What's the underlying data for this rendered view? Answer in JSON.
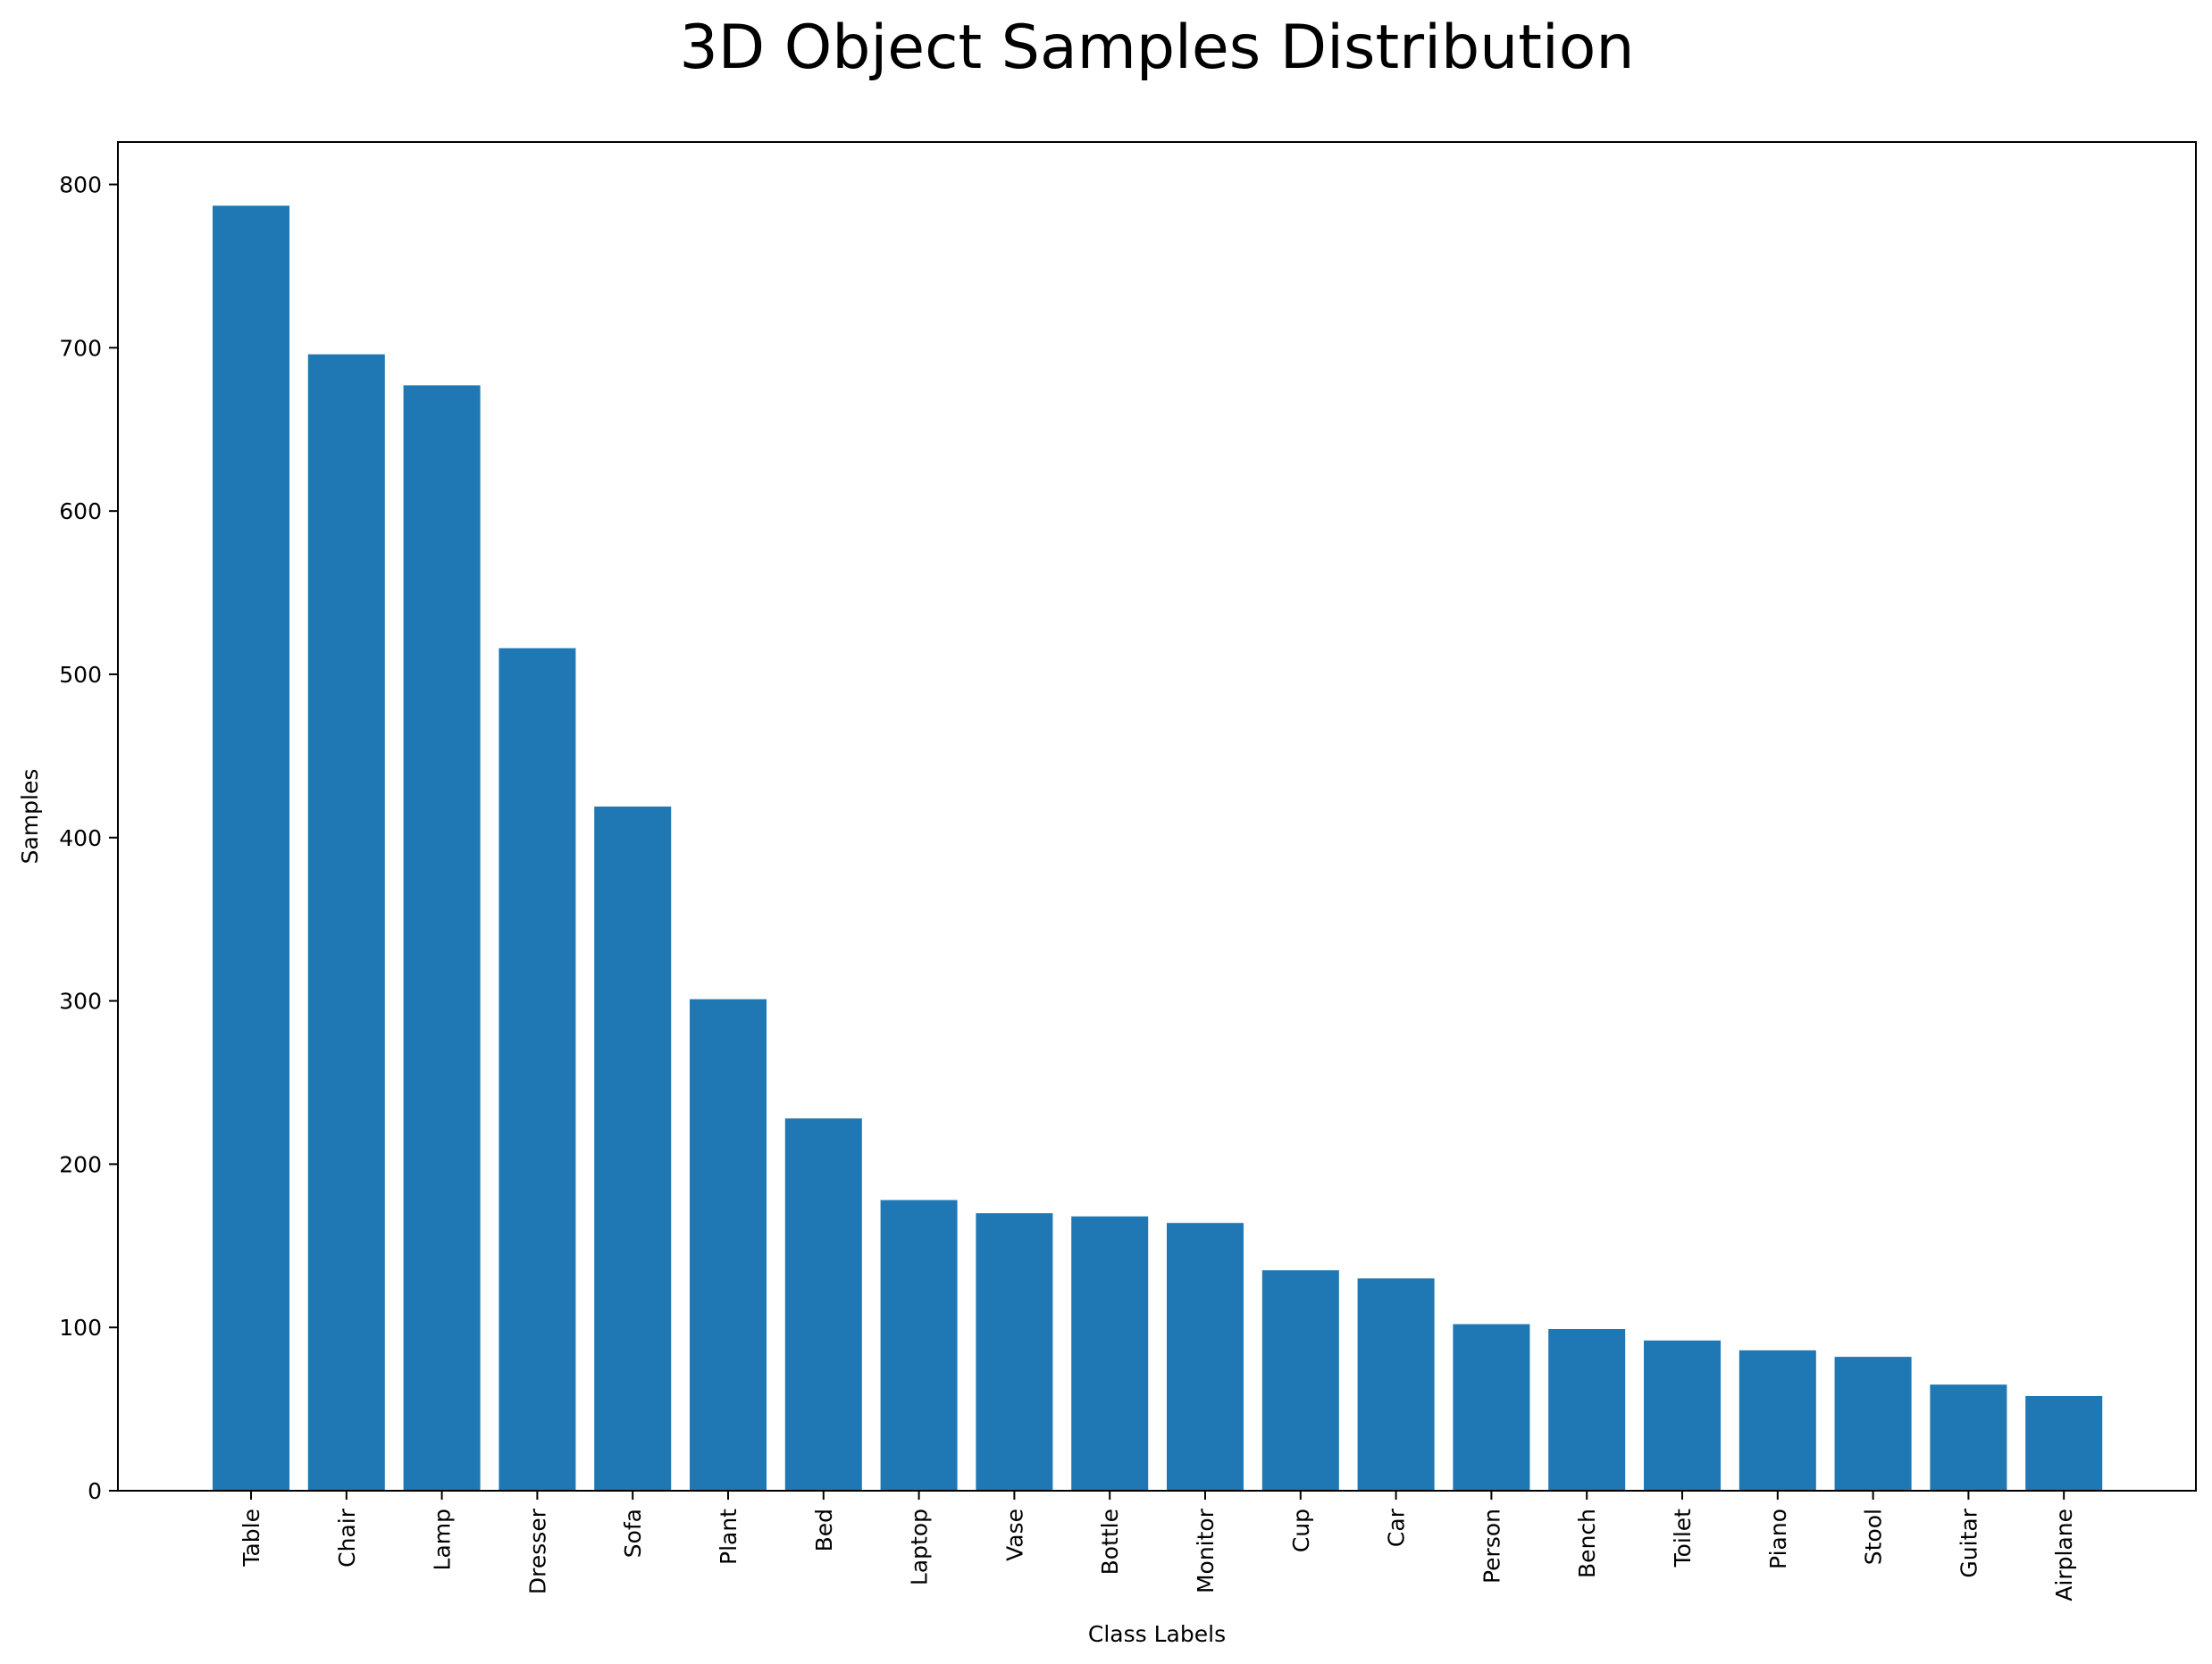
{
  "chart_data": {
    "type": "bar",
    "title": "3D Object Samples Distribution",
    "xlabel": "Class Labels",
    "ylabel": "Samples",
    "categories": [
      "Table",
      "Chair",
      "Lamp",
      "Dresser",
      "Sofa",
      "Plant",
      "Bed",
      "Laptop",
      "Vase",
      "Bottle",
      "Monitor",
      "Cup",
      "Car",
      "Person",
      "Bench",
      "Toilet",
      "Piano",
      "Stool",
      "Guitar",
      "Airplane"
    ],
    "values": [
      787,
      696,
      677,
      516,
      419,
      301,
      228,
      178,
      170,
      168,
      164,
      135,
      130,
      102,
      99,
      92,
      86,
      82,
      65,
      58
    ],
    "ylim": [
      0,
      826
    ],
    "yticks": [
      0,
      100,
      200,
      300,
      400,
      500,
      600,
      700,
      800
    ],
    "bar_color": "#1f77b4",
    "grid": false,
    "legend": "none"
  }
}
